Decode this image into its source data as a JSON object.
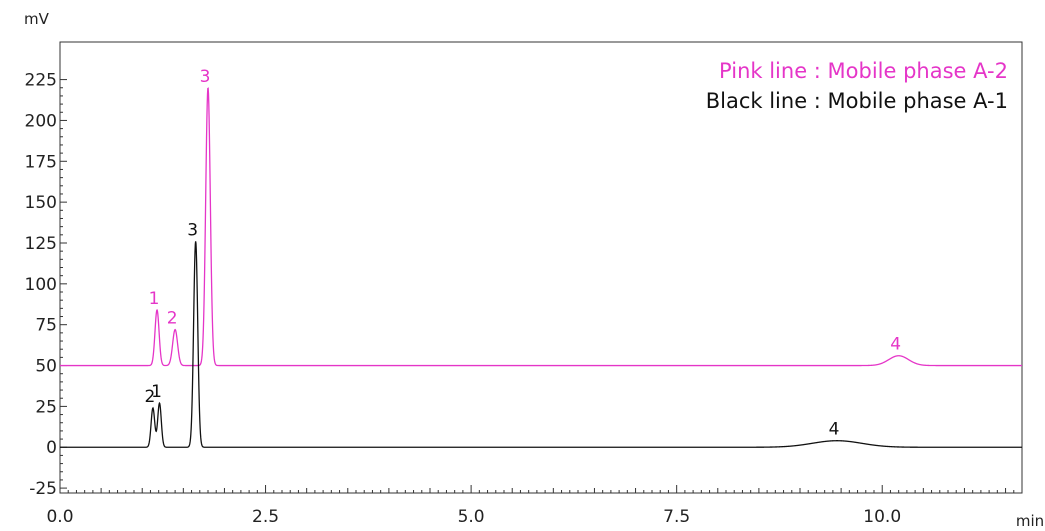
{
  "chart_data": {
    "type": "line",
    "title": "",
    "xlabel": "min",
    "ylabel": "mV",
    "xlim": [
      0,
      11.7
    ],
    "ylim": [
      -28,
      248
    ],
    "xticks": [
      0,
      2.5,
      5,
      7.5,
      10
    ],
    "xtick_labels": [
      "0.0",
      "2.5",
      "5.0",
      "7.5",
      "10.0"
    ],
    "yticks": [
      -25,
      0,
      25,
      50,
      75,
      100,
      125,
      150,
      175,
      200,
      225
    ],
    "ytick_labels": [
      "-25",
      "0",
      "25",
      "50",
      "75",
      "100",
      "125",
      "150",
      "175",
      "200",
      "225"
    ],
    "grid": false,
    "legend": {
      "placement": "top-right",
      "entries": [
        {
          "text": "Pink line : Mobile phase A-2",
          "color": "#e535c8"
        },
        {
          "text": "Black line : Mobile phase A-1",
          "color": "#111111"
        }
      ]
    },
    "series": [
      {
        "name": "Pink line : Mobile phase A-2",
        "color": "#e535c8",
        "baseline": 50,
        "peaks": [
          {
            "label": "1",
            "rt": 1.18,
            "height": 34,
            "width": 0.025
          },
          {
            "label": "2",
            "rt": 1.4,
            "height": 22,
            "width": 0.03
          },
          {
            "label": "3",
            "rt": 1.8,
            "height": 170,
            "width": 0.028
          },
          {
            "label": "4",
            "rt": 10.2,
            "height": 6,
            "width": 0.12
          }
        ]
      },
      {
        "name": "Black line : Mobile phase A-1",
        "color": "#111111",
        "baseline": 0,
        "peaks": [
          {
            "label": "2",
            "rt": 1.13,
            "height": 24,
            "width": 0.022
          },
          {
            "label": "1",
            "rt": 1.21,
            "height": 27,
            "width": 0.022
          },
          {
            "label": "3",
            "rt": 1.65,
            "height": 126,
            "width": 0.025
          },
          {
            "label": "4",
            "rt": 9.45,
            "height": 4,
            "width": 0.3
          }
        ]
      }
    ]
  }
}
